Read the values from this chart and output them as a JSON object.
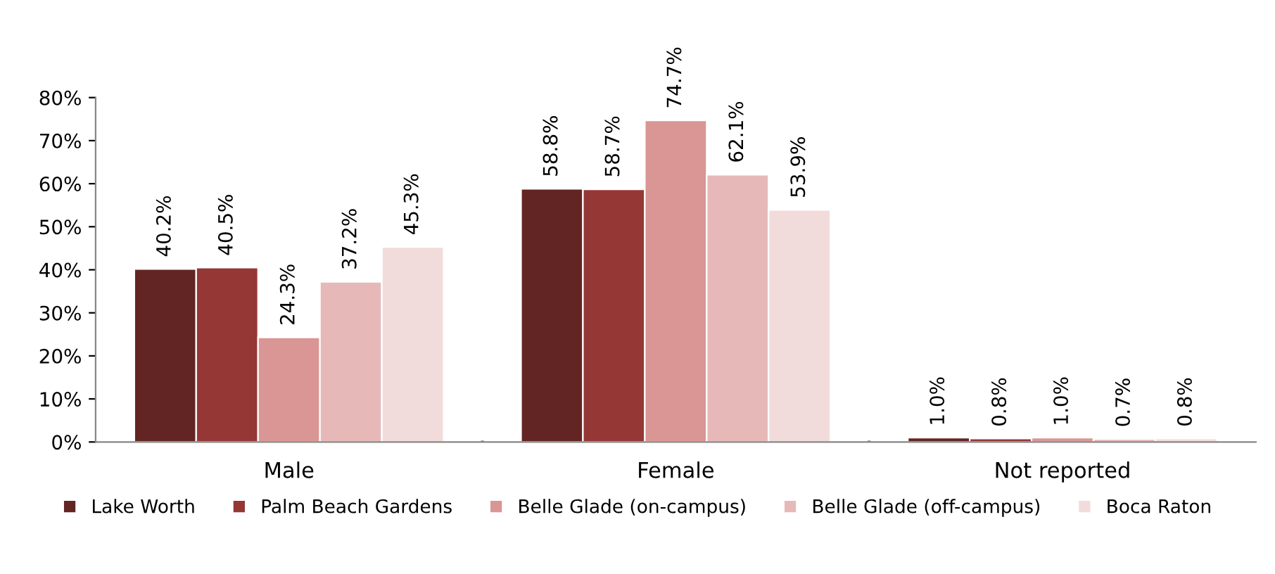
{
  "chart_data": {
    "type": "bar",
    "categories": [
      "Male",
      "Female",
      "Not reported"
    ],
    "series": [
      {
        "name": "Lake Worth",
        "color": "#632523",
        "values": [
          40.2,
          58.8,
          1.0
        ],
        "value_labels": [
          "40.2%",
          "58.8%",
          "1.0%"
        ]
      },
      {
        "name": "Palm Beach Gardens",
        "color": "#953735",
        "values": [
          40.5,
          58.7,
          0.8
        ],
        "value_labels": [
          "40.5%",
          "58.7%",
          "0.8%"
        ]
      },
      {
        "name": "Belle Glade (on-campus)",
        "color": "#d99694",
        "values": [
          24.3,
          74.7,
          1.0
        ],
        "value_labels": [
          "24.3%",
          "74.7%",
          "1.0%"
        ]
      },
      {
        "name": "Belle Glade (off-campus)",
        "color": "#e6b9b8",
        "values": [
          37.2,
          62.1,
          0.7
        ],
        "value_labels": [
          "37.2%",
          "62.1%",
          "0.7%"
        ]
      },
      {
        "name": "Boca Raton",
        "color": "#f2dcdb",
        "values": [
          45.3,
          53.9,
          0.8
        ],
        "value_labels": [
          "45.3%",
          "53.9%",
          "0.8%"
        ]
      }
    ],
    "ylim": [
      0,
      80
    ],
    "yticks": [
      {
        "value": 0,
        "label": "0%"
      },
      {
        "value": 10,
        "label": "10%"
      },
      {
        "value": 20,
        "label": "20%"
      },
      {
        "value": 30,
        "label": "30%"
      },
      {
        "value": 40,
        "label": "40%"
      },
      {
        "value": 50,
        "label": "50%"
      },
      {
        "value": 60,
        "label": "60%"
      },
      {
        "value": 70,
        "label": "70%"
      },
      {
        "value": 80,
        "label": "80%"
      }
    ],
    "grid": false,
    "legend": "bottom"
  }
}
